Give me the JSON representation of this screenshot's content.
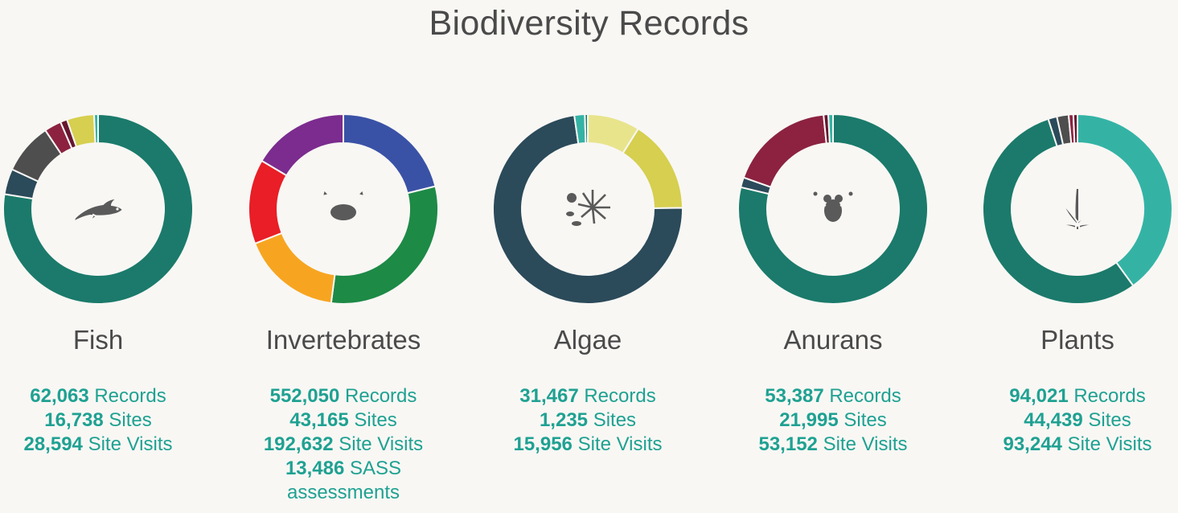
{
  "title": "Biodiversity Records",
  "chart_data": [
    {
      "type": "pie",
      "name": "Fish",
      "icon": "fish-icon",
      "slices": [
        {
          "value": 0.8,
          "color": "#1b7a6b"
        },
        {
          "value": 0.045,
          "color": "#2b4a5a"
        },
        {
          "value": 0.09,
          "color": "#4e4e4e"
        },
        {
          "value": 0.03,
          "color": "#8c2240"
        },
        {
          "value": 0.012,
          "color": "#661630"
        },
        {
          "value": 0.048,
          "color": "#d6cf4f"
        },
        {
          "value": 0.007,
          "color": "#34b3a5"
        }
      ],
      "stats": [
        {
          "value": "62,063",
          "label": "Records"
        },
        {
          "value": "16,738",
          "label": "Sites"
        },
        {
          "value": "28,594",
          "label": "Site Visits"
        }
      ]
    },
    {
      "type": "pie",
      "name": "Invertebrates",
      "icon": "crab-icon",
      "slices": [
        {
          "value": 0.205,
          "color": "#3a52a6"
        },
        {
          "value": 0.3,
          "color": "#1d8a46"
        },
        {
          "value": 0.165,
          "color": "#f7a521"
        },
        {
          "value": 0.14,
          "color": "#e91e26"
        },
        {
          "value": 0.16,
          "color": "#7b2c8e"
        }
      ],
      "stats": [
        {
          "value": "552,050",
          "label": "Records"
        },
        {
          "value": "43,165",
          "label": "Sites"
        },
        {
          "value": "192,632",
          "label": "Site Visits"
        },
        {
          "value": "13,486",
          "label": "SASS assessments"
        }
      ]
    },
    {
      "type": "pie",
      "name": "Algae",
      "icon": "algae-icon",
      "slices": [
        {
          "value": 0.09,
          "color": "#e8e48c"
        },
        {
          "value": 0.16,
          "color": "#d6cf4f"
        },
        {
          "value": 0.735,
          "color": "#2b4a5a"
        },
        {
          "value": 0.018,
          "color": "#34b3a5"
        },
        {
          "value": 0.005,
          "color": "#1b7a6b"
        }
      ],
      "stats": [
        {
          "value": "31,467",
          "label": "Records"
        },
        {
          "value": "1,235",
          "label": "Sites"
        },
        {
          "value": "15,956",
          "label": "Site Visits"
        }
      ]
    },
    {
      "type": "pie",
      "name": "Anurans",
      "icon": "frog-icon",
      "slices": [
        {
          "value": 0.787,
          "color": "#1b7a6b"
        },
        {
          "value": 0.017,
          "color": "#2b4a5a"
        },
        {
          "value": 0.18,
          "color": "#8c2240"
        },
        {
          "value": 0.008,
          "color": "#661630"
        },
        {
          "value": 0.008,
          "color": "#34b3a5"
        }
      ],
      "stats": [
        {
          "value": "53,387",
          "label": "Records"
        },
        {
          "value": "21,995",
          "label": "Sites"
        },
        {
          "value": "53,152",
          "label": "Site Visits"
        }
      ]
    },
    {
      "type": "pie",
      "name": "Plants",
      "icon": "plant-icon",
      "slices": [
        {
          "value": 0.4,
          "color": "#34b3a5"
        },
        {
          "value": 0.55,
          "color": "#1b7a6b"
        },
        {
          "value": 0.015,
          "color": "#2b4a5a"
        },
        {
          "value": 0.02,
          "color": "#4e4e4e"
        },
        {
          "value": 0.008,
          "color": "#8c2240"
        },
        {
          "value": 0.007,
          "color": "#661630"
        }
      ],
      "stats": [
        {
          "value": "94,021",
          "label": "Records"
        },
        {
          "value": "44,439",
          "label": "Sites"
        },
        {
          "value": "93,244",
          "label": "Site Visits"
        }
      ]
    }
  ]
}
